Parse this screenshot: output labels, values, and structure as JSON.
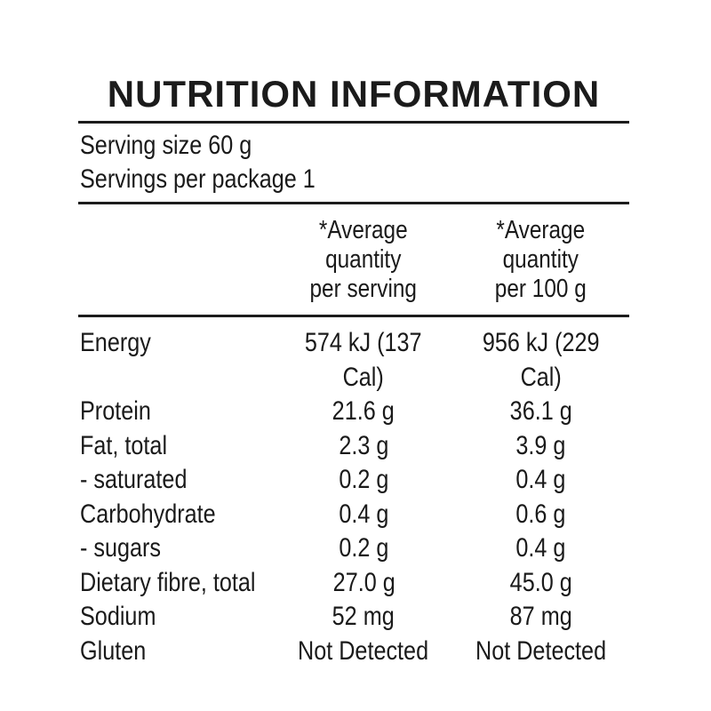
{
  "title": "NUTRITION INFORMATION",
  "serving_info": {
    "serving_size": "Serving size 60 g",
    "servings_per_package": "Servings per package 1"
  },
  "table": {
    "columns": [
      "",
      "*Average\nquantity\nper serving",
      "*Average\nquantity\nper 100 g"
    ],
    "rows": [
      {
        "label": "Energy",
        "per_serving": "574 kJ (137 Cal)",
        "per_100g": "956 kJ (229 Cal)"
      },
      {
        "label": "Protein",
        "per_serving": "21.6 g",
        "per_100g": "36.1 g"
      },
      {
        "label": "Fat, total",
        "per_serving": "2.3 g",
        "per_100g": "3.9 g"
      },
      {
        "label": "- saturated",
        "per_serving": "0.2 g",
        "per_100g": "0.4 g"
      },
      {
        "label": "Carbohydrate",
        "per_serving": "0.4 g",
        "per_100g": "0.6 g"
      },
      {
        "label": "- sugars",
        "per_serving": "0.2 g",
        "per_100g": "0.4 g"
      },
      {
        "label": "Dietary fibre, total",
        "per_serving": "27.0 g",
        "per_100g": "45.0 g"
      },
      {
        "label": "Sodium",
        "per_serving": "52 mg",
        "per_100g": "87 mg"
      },
      {
        "label": "Gluten",
        "per_serving": "Not Detected",
        "per_100g": "Not Detected"
      }
    ]
  },
  "colors": {
    "text": "#1a1a1a",
    "rule": "#1c1c1c",
    "background": "#ffffff"
  }
}
